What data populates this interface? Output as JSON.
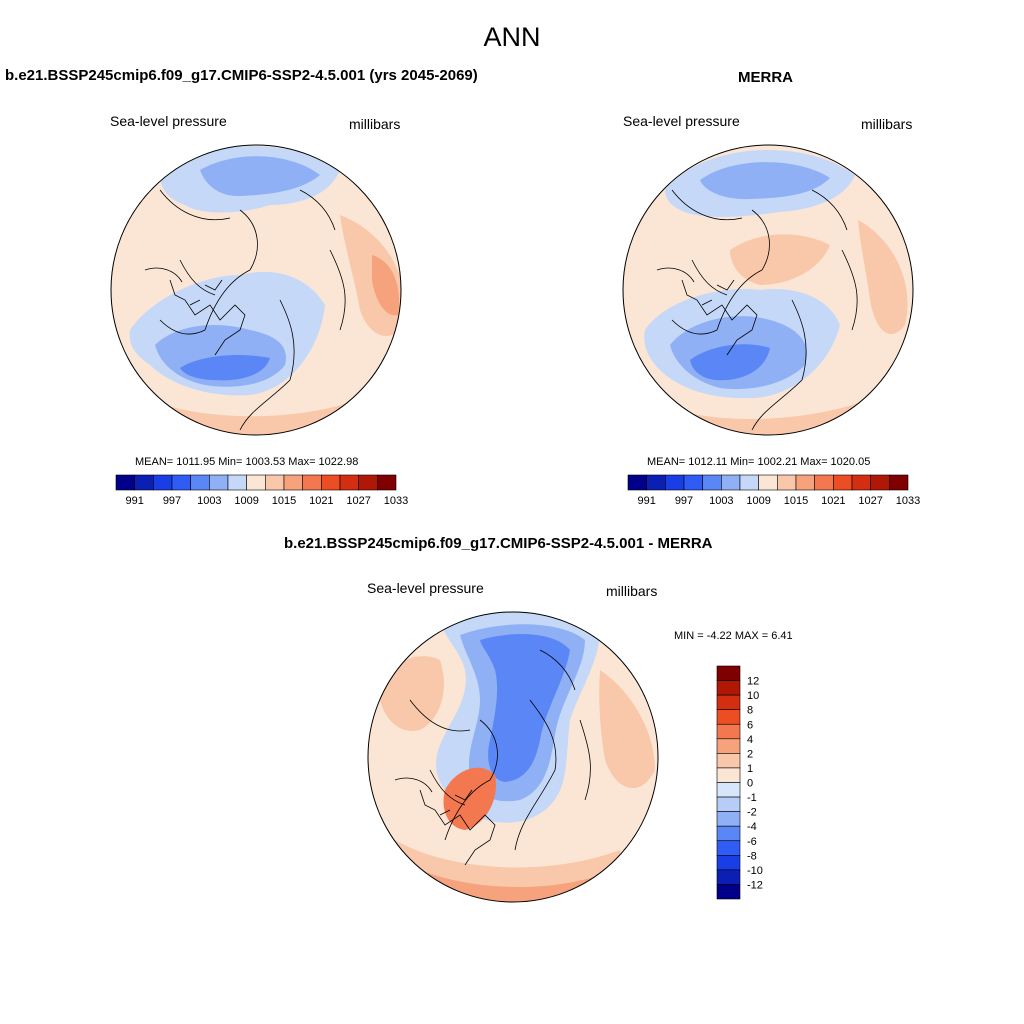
{
  "figure": {
    "title": "ANN"
  },
  "panels": [
    {
      "title": "b.e21.BSSP245cmip6.f09_g17.CMIP6-SSP2-4.5.001 (yrs 2045-2069)",
      "variable": "Sea-level pressure",
      "units": "millibars",
      "stats": "MEAN= 1011.95  Min= 1003.53  Max= 1022.98"
    },
    {
      "title": "MERRA",
      "variable": "Sea-level pressure",
      "units": "millibars",
      "stats": "MEAN= 1012.11  Min= 1002.21  Max= 1020.05"
    },
    {
      "title": "b.e21.BSSP245cmip6.f09_g17.CMIP6-SSP2-4.5.001 - MERRA",
      "variable": "Sea-level pressure",
      "units": "millibars",
      "stats": "MIN =  -4.22 MAX =   6.41"
    }
  ],
  "colorbar_abs": {
    "colors": [
      "#00008b",
      "#0b1fb4",
      "#1a3ee6",
      "#2e5cf5",
      "#5a87f5",
      "#8fb0f5",
      "#c5d8f8",
      "#fbe6d6",
      "#f9c8aa",
      "#f5a27d",
      "#f37850",
      "#ec4d23",
      "#d42e12",
      "#b01805",
      "#7f0000"
    ],
    "tick_labels": [
      "991",
      "997",
      "1003",
      "1009",
      "1015",
      "1021",
      "1027",
      "1033"
    ]
  },
  "colorbar_diff": {
    "colors_top_to_bottom": [
      "#7f0000",
      "#b01805",
      "#d42e12",
      "#ec4d23",
      "#f37850",
      "#f5a27d",
      "#f9c8aa",
      "#fbe6d6",
      "#d8e6fa",
      "#b5cdf8",
      "#8fb0f5",
      "#5a87f5",
      "#2e5cf5",
      "#1a3ee6",
      "#0b1fb4",
      "#00008b"
    ],
    "tick_labels_top_to_bottom": [
      "12",
      "10",
      "8",
      "6",
      "4",
      "2",
      "1",
      "0",
      "-1",
      "-2",
      "-4",
      "-6",
      "-8",
      "-10",
      "-12"
    ]
  },
  "map_colors": {
    "background_positive": "#fbe6d6",
    "light_blue": "#c5d8f8",
    "mid_blue": "#8fb0f5",
    "blue": "#5a87f5",
    "peach": "#f9c8aa",
    "salmon": "#f5a27d",
    "orange": "#f37850",
    "coastline": "#000000"
  }
}
